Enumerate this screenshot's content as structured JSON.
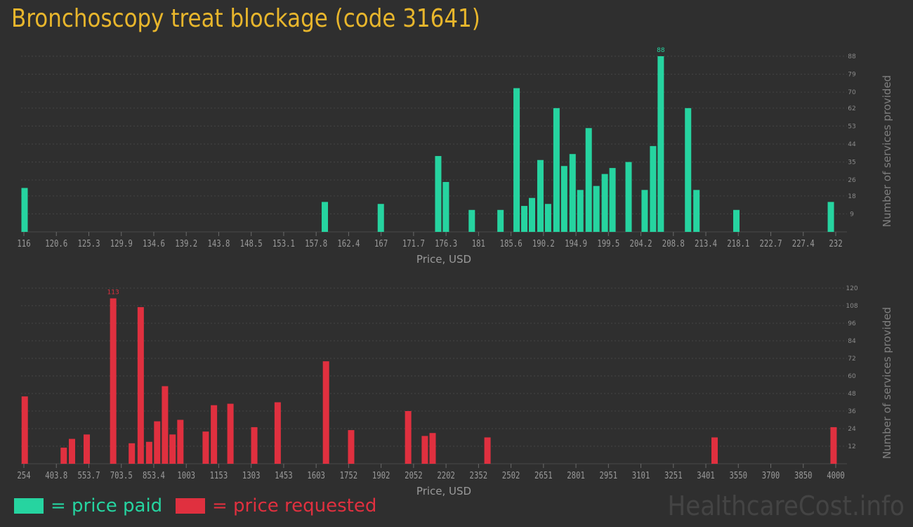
{
  "title": "Bronchoscopy treat blockage (code 31641)",
  "colors": {
    "paid": "#26d4a0",
    "requested": "#e0303f",
    "title": "#e8b62c",
    "grid": "#454545"
  },
  "legend": {
    "paid": "= price paid",
    "requested": "= price requested"
  },
  "watermark": "HealthcareCost.info",
  "chart_data": [
    {
      "type": "bar",
      "name": "price paid",
      "xlabel": "Price, USD",
      "ylabel": "Number of services provided",
      "xlim": [
        116,
        232
      ],
      "ylim": [
        0,
        88
      ],
      "xticks": [
        "116",
        "120.6",
        "125.3",
        "129.9",
        "134.6",
        "139.2",
        "143.8",
        "148.5",
        "153.1",
        "157.8",
        "162.4",
        "167",
        "171.7",
        "176.3",
        "181",
        "185.6",
        "190.2",
        "194.9",
        "199.5",
        "204.2",
        "208.8",
        "213.4",
        "218.1",
        "222.7",
        "227.4",
        "232"
      ],
      "yticks": [
        9,
        18,
        26,
        35,
        44,
        53,
        62,
        70,
        79,
        88
      ],
      "peak_label": "88",
      "points": [
        {
          "x": 116.1,
          "y": 22
        },
        {
          "x": 159.0,
          "y": 15
        },
        {
          "x": 167.0,
          "y": 14
        },
        {
          "x": 175.2,
          "y": 38
        },
        {
          "x": 176.3,
          "y": 25
        },
        {
          "x": 180.0,
          "y": 11
        },
        {
          "x": 184.1,
          "y": 11
        },
        {
          "x": 186.4,
          "y": 72
        },
        {
          "x": 187.5,
          "y": 13
        },
        {
          "x": 188.6,
          "y": 17
        },
        {
          "x": 189.8,
          "y": 36
        },
        {
          "x": 190.9,
          "y": 14
        },
        {
          "x": 192.1,
          "y": 62
        },
        {
          "x": 193.2,
          "y": 33
        },
        {
          "x": 194.4,
          "y": 39
        },
        {
          "x": 195.5,
          "y": 21
        },
        {
          "x": 196.7,
          "y": 52
        },
        {
          "x": 197.8,
          "y": 23
        },
        {
          "x": 199.0,
          "y": 29
        },
        {
          "x": 200.1,
          "y": 32
        },
        {
          "x": 202.4,
          "y": 35
        },
        {
          "x": 204.7,
          "y": 21
        },
        {
          "x": 205.9,
          "y": 43
        },
        {
          "x": 207.0,
          "y": 88
        },
        {
          "x": 210.9,
          "y": 62
        },
        {
          "x": 212.1,
          "y": 21
        },
        {
          "x": 217.8,
          "y": 11
        },
        {
          "x": 231.3,
          "y": 15
        }
      ]
    },
    {
      "type": "bar",
      "name": "price requested",
      "xlabel": "Price, USD",
      "ylabel": "Number of services provided",
      "xlim": [
        254,
        4000
      ],
      "ylim": [
        0,
        120
      ],
      "xticks": [
        "254",
        "403.8",
        "553.7",
        "703.5",
        "853.4",
        "1003",
        "1153",
        "1303",
        "1453",
        "1603",
        "1752",
        "1902",
        "2052",
        "2202",
        "2352",
        "2502",
        "2651",
        "2801",
        "2951",
        "3101",
        "3251",
        "3401",
        "3550",
        "3700",
        "3850",
        "4000"
      ],
      "yticks": [
        12,
        24,
        36,
        48,
        60,
        72,
        84,
        96,
        108,
        120
      ],
      "peak_label": "113",
      "points": [
        {
          "x": 258,
          "y": 46
        },
        {
          "x": 438,
          "y": 11
        },
        {
          "x": 476,
          "y": 17
        },
        {
          "x": 544,
          "y": 20
        },
        {
          "x": 666,
          "y": 113
        },
        {
          "x": 752,
          "y": 14
        },
        {
          "x": 793,
          "y": 107
        },
        {
          "x": 832,
          "y": 15
        },
        {
          "x": 869,
          "y": 29
        },
        {
          "x": 905,
          "y": 53
        },
        {
          "x": 940,
          "y": 20
        },
        {
          "x": 976,
          "y": 30
        },
        {
          "x": 1093,
          "y": 22
        },
        {
          "x": 1131,
          "y": 40
        },
        {
          "x": 1207,
          "y": 41
        },
        {
          "x": 1317,
          "y": 25
        },
        {
          "x": 1425,
          "y": 42
        },
        {
          "x": 1648,
          "y": 70
        },
        {
          "x": 1764,
          "y": 23
        },
        {
          "x": 2027,
          "y": 36
        },
        {
          "x": 2104,
          "y": 19
        },
        {
          "x": 2140,
          "y": 21
        },
        {
          "x": 2393,
          "y": 18
        },
        {
          "x": 3441,
          "y": 18
        },
        {
          "x": 3990,
          "y": 25
        }
      ]
    }
  ]
}
